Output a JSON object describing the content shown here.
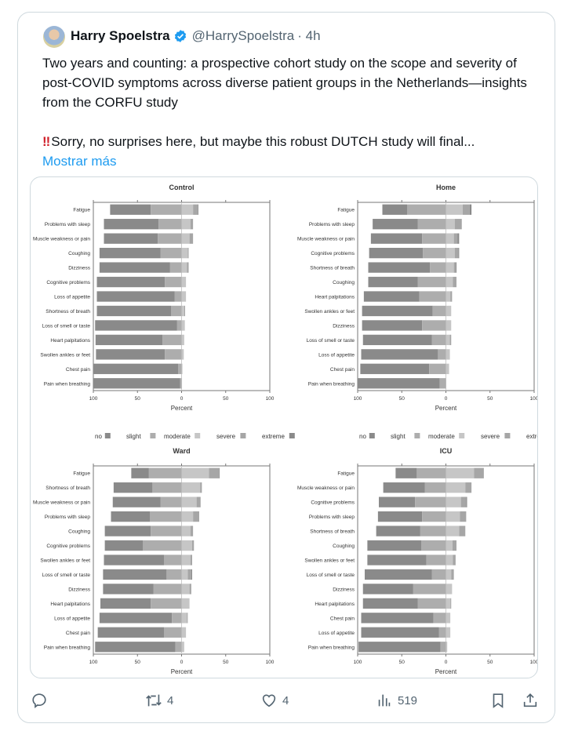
{
  "tweet": {
    "author_name": "Harry Spoelstra",
    "handle": "@HarrySpoelstra",
    "time": "· 4h",
    "paragraph1": "Two years and counting: a prospective cohort study on the scope and severity of post-COVID symptoms across diverse patient groups in the Netherlands—insights from the CORFU study",
    "paragraph2_emoji": "‼",
    "paragraph2": "Sorry, no surprises here, but maybe this robust DUTCH study will final...",
    "show_more": "Mostrar más"
  },
  "actions": {
    "reply_count": "",
    "retweet_count": "4",
    "like_count": "4",
    "views_count": "519"
  },
  "colors": {
    "link": "#1d9bf0",
    "verified": "#1d9bf0",
    "no": "#8a8a8a",
    "slight": "#adadad",
    "moderate": "#c6c6c6",
    "severe": "#a6a6a6",
    "extreme": "#8a8a8a"
  },
  "chart_data": [
    {
      "type": "bar",
      "subtype": "diverging-stacked-likert",
      "title": "Control",
      "xlabel": "Percent",
      "xticks": [
        "100",
        "50",
        "0",
        "50",
        "100"
      ],
      "xlim": [
        -100,
        100
      ],
      "legend": [
        "no",
        "slight",
        "moderate",
        "severe",
        "extreme"
      ],
      "categories": [
        "Fatigue",
        "Problems with sleep",
        "Muscle weakness or pain",
        "Coughing",
        "Dizziness",
        "Cognitive problems",
        "Loss of appetite",
        "Shortness of breath",
        "Loss of smell or taste",
        "Heart palpitations",
        "Swollen ankles or feet",
        "Chest pain",
        "Pain when breathing"
      ],
      "values": [
        [
          46,
          35,
          13,
          5,
          1
        ],
        [
          62,
          26,
          10,
          3,
          0
        ],
        [
          61,
          27,
          9,
          4,
          0
        ],
        [
          69,
          24,
          7,
          1,
          0
        ],
        [
          80,
          13,
          6,
          2,
          0
        ],
        [
          77,
          19,
          5,
          0,
          0
        ],
        [
          88,
          8,
          5,
          0,
          0
        ],
        [
          84,
          12,
          3,
          1,
          0
        ],
        [
          93,
          5,
          3,
          0.5,
          0
        ],
        [
          76,
          21.5,
          3,
          0,
          0
        ],
        [
          78,
          19,
          2.5,
          0,
          0
        ],
        [
          96,
          4,
          1,
          0,
          0
        ],
        [
          98,
          1.5,
          0.5,
          0,
          0
        ]
      ]
    },
    {
      "type": "bar",
      "subtype": "diverging-stacked-likert",
      "title": "Home",
      "xlabel": "Percent",
      "xticks": [
        "100",
        "50",
        "0",
        "50",
        "100"
      ],
      "xlim": [
        -100,
        100
      ],
      "legend": [
        "no",
        "slight",
        "moderate",
        "severe",
        "extreme"
      ],
      "categories": [
        "Fatigue",
        "Problems with sleep",
        "Muscle weakness or pain",
        "Cognitive problems",
        "Shortness of breath",
        "Coughing",
        "Heart palpitations",
        "Swollen ankles or feet",
        "Dizziness",
        "Loss of smell or taste",
        "Loss of appetite",
        "Chest pain",
        "Pain when breathing"
      ],
      "values": [
        [
          28,
          44,
          19,
          8,
          2
        ],
        [
          51,
          32,
          10,
          8,
          0
        ],
        [
          58,
          27,
          9,
          4,
          2
        ],
        [
          61,
          26,
          10,
          4,
          1
        ],
        [
          70,
          18,
          9,
          2,
          1
        ],
        [
          56,
          32,
          8,
          4,
          0
        ],
        [
          63,
          30,
          5,
          2,
          0
        ],
        [
          80,
          15,
          6,
          0,
          0
        ],
        [
          68,
          27,
          6,
          0,
          0
        ],
        [
          78,
          16,
          4.5,
          1.5,
          0
        ],
        [
          87,
          9,
          4.5,
          0,
          0
        ],
        [
          78,
          19,
          3.6,
          0,
          0
        ],
        [
          93,
          7,
          0,
          0,
          0
        ]
      ]
    },
    {
      "type": "bar",
      "subtype": "diverging-stacked-likert",
      "title": "Ward",
      "xlabel": "Percent",
      "xticks": [
        "100",
        "50",
        "0",
        "50",
        "100"
      ],
      "xlim": [
        -100,
        100
      ],
      "legend": [
        "no",
        "slight",
        "moderate",
        "severe",
        "extreme"
      ],
      "categories": [
        "Fatigue",
        "Shortness of breath",
        "Muscle weakness or pain",
        "Problems with sleep",
        "Coughing",
        "Cognitive problems",
        "Swollen ankles or feet",
        "Loss of smell or taste",
        "Dizziness",
        "Heart palpitations",
        "Loss of appetite",
        "Chest pain",
        "Pain when breathing"
      ],
      "values": [
        [
          20,
          37,
          31,
          11,
          1
        ],
        [
          44,
          33,
          21,
          2,
          0
        ],
        [
          54,
          24,
          17,
          4,
          0.5
        ],
        [
          44,
          36,
          13,
          7,
          0
        ],
        [
          52,
          35,
          10,
          3,
          0
        ],
        [
          43,
          44,
          12,
          2,
          0
        ],
        [
          68,
          20,
          10,
          2,
          0
        ],
        [
          72,
          17,
          7,
          4,
          1
        ],
        [
          57,
          32,
          9,
          2,
          0
        ],
        [
          57,
          35,
          9,
          0,
          0
        ],
        [
          82,
          11,
          6,
          1,
          0
        ],
        [
          75,
          20,
          5,
          0,
          0
        ],
        [
          91,
          7,
          3,
          0,
          0
        ]
      ]
    },
    {
      "type": "bar",
      "subtype": "diverging-stacked-likert",
      "title": "ICU",
      "xlabel": "Percent",
      "xticks": [
        "100",
        "50",
        "0",
        "50",
        "100"
      ],
      "xlim": [
        -100,
        100
      ],
      "legend": [
        "no",
        "slight",
        "moderate",
        "severe",
        "extreme"
      ],
      "categories": [
        "Fatigue",
        "Muscle weakness or pain",
        "Cognitive problems",
        "Problems with sleep",
        "Shortness of breath",
        "Coughing",
        "Swollen ankles or feet",
        "Loss of smell or taste",
        "Dizziness",
        "Heart palpitations",
        "Chest pain",
        "Loss of appetite",
        "Pain when breathing"
      ],
      "values": [
        [
          24,
          33,
          32,
          11,
          0
        ],
        [
          47,
          24,
          22,
          7,
          0
        ],
        [
          41,
          35,
          17,
          6,
          1
        ],
        [
          50,
          27,
          16,
          7,
          0
        ],
        [
          50,
          29,
          15,
          7,
          0
        ],
        [
          61,
          28,
          7.5,
          4.5,
          0
        ],
        [
          67,
          22,
          8,
          3,
          0
        ],
        [
          76,
          16,
          6,
          3,
          0
        ],
        [
          57,
          37,
          7,
          0,
          0
        ],
        [
          62,
          32,
          5,
          1,
          0
        ],
        [
          82,
          14,
          5,
          0,
          0
        ],
        [
          88,
          8,
          5,
          0,
          0
        ],
        [
          93,
          6,
          1.5,
          0,
          0
        ]
      ]
    }
  ]
}
